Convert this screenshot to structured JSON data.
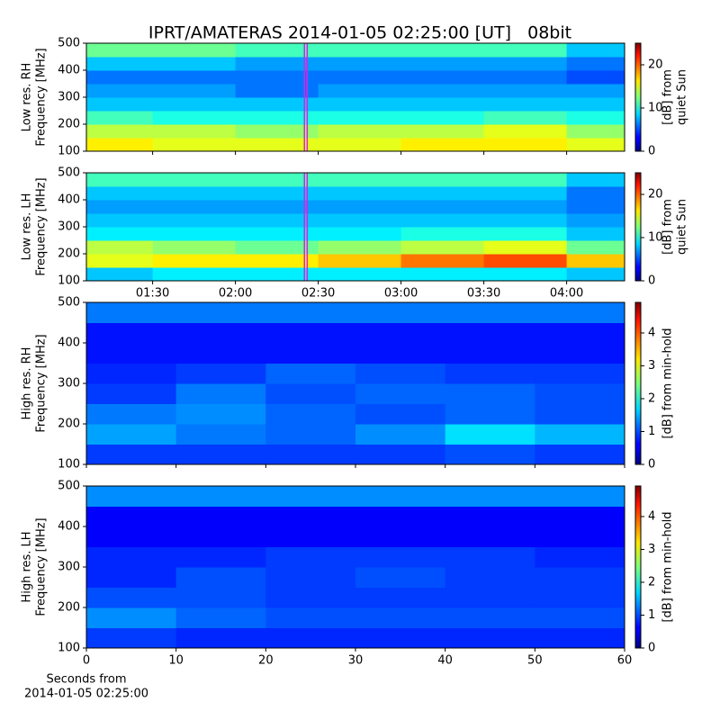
{
  "title": "IPRT/AMATERAS 2014-01-05 02:25:00 [UT]   08bit",
  "chart_data": [
    {
      "type": "heatmap",
      "colormap": "jet",
      "ylabel": [
        "Low res. RH",
        "Frequency [MHz]"
      ],
      "ylim": [
        100,
        500
      ],
      "yticks": [
        100,
        200,
        300,
        400,
        500
      ],
      "xlim": [
        66,
        261
      ],
      "x_bins": [
        66,
        90,
        120,
        150,
        180,
        210,
        240,
        261
      ],
      "y_bins": [
        100,
        150,
        200,
        250,
        300,
        350,
        400,
        450,
        500
      ],
      "z": [
        [
          16,
          15,
          15,
          15,
          16,
          16,
          15
        ],
        [
          14,
          14,
          13,
          14,
          14,
          15,
          13
        ],
        [
          11,
          10,
          10,
          10,
          10,
          11,
          10
        ],
        [
          8,
          8,
          8,
          8,
          8,
          8,
          8
        ],
        [
          7,
          7,
          6,
          7,
          7,
          7,
          7
        ],
        [
          6,
          6,
          6,
          6,
          6,
          6,
          5
        ],
        [
          8,
          8,
          7,
          7,
          7,
          7,
          6
        ],
        [
          12,
          12,
          11,
          11,
          11,
          11,
          8
        ]
      ],
      "highlight": [
        145,
        146
      ],
      "highlight_color": "#e020e0",
      "clim": [
        0,
        25
      ],
      "cticks": [
        0,
        10,
        20
      ],
      "clabel": [
        "[dB] from",
        "quiet Sun"
      ]
    },
    {
      "type": "heatmap",
      "colormap": "jet",
      "ylabel": [
        "Low res. LH",
        "Frequency [MHz]"
      ],
      "ylim": [
        100,
        500
      ],
      "yticks": [
        100,
        200,
        300,
        400,
        500
      ],
      "xlim": [
        66,
        261
      ],
      "xticks": [
        {
          "value": 90,
          "label": "01:30"
        },
        {
          "value": 120,
          "label": "02:00"
        },
        {
          "value": 150,
          "label": "02:30"
        },
        {
          "value": 180,
          "label": "03:00"
        },
        {
          "value": 210,
          "label": "03:30"
        },
        {
          "value": 240,
          "label": "04:00"
        }
      ],
      "x_bins": [
        66,
        90,
        120,
        150,
        180,
        210,
        240,
        261
      ],
      "y_bins": [
        100,
        150,
        200,
        250,
        300,
        350,
        400,
        450,
        500
      ],
      "z": [
        [
          8,
          9,
          9,
          9,
          9,
          9,
          8
        ],
        [
          15,
          16,
          16,
          17,
          19,
          20,
          17
        ],
        [
          14,
          13,
          12,
          13,
          14,
          15,
          12
        ],
        [
          9,
          9,
          9,
          9,
          10,
          10,
          8
        ],
        [
          8,
          8,
          8,
          8,
          8,
          8,
          7
        ],
        [
          7,
          7,
          7,
          7,
          7,
          7,
          6
        ],
        [
          8,
          8,
          8,
          8,
          8,
          8,
          6
        ],
        [
          11,
          11,
          11,
          11,
          11,
          11,
          8
        ]
      ],
      "highlight": [
        145,
        146
      ],
      "highlight_color": "#e020e0",
      "clim": [
        0,
        25
      ],
      "cticks": [
        0,
        10,
        20
      ],
      "clabel": [
        "[dB] from",
        "quiet Sun"
      ]
    },
    {
      "type": "heatmap",
      "colormap": "jet",
      "ylabel": [
        "High res. RH",
        "Frequency [MHz]"
      ],
      "ylim": [
        100,
        500
      ],
      "yticks": [
        100,
        200,
        300,
        400,
        500
      ],
      "xlim": [
        0,
        60
      ],
      "x_bins": [
        0,
        10,
        20,
        30,
        40,
        50,
        60
      ],
      "y_bins": [
        100,
        150,
        200,
        250,
        300,
        350,
        400,
        450,
        500
      ],
      "z": [
        [
          0.9,
          0.9,
          0.9,
          0.9,
          1.0,
          0.9
        ],
        [
          1.4,
          1.2,
          1.1,
          1.3,
          1.7,
          1.5
        ],
        [
          1.2,
          1.3,
          1.1,
          1.0,
          1.1,
          1.0
        ],
        [
          0.9,
          1.2,
          1.0,
          1.1,
          1.1,
          1.0
        ],
        [
          0.8,
          0.9,
          1.1,
          1.0,
          0.9,
          0.9
        ],
        [
          0.7,
          0.7,
          0.7,
          0.7,
          0.7,
          0.7
        ],
        [
          0.7,
          0.7,
          0.7,
          0.7,
          0.7,
          0.7
        ],
        [
          1.2,
          1.2,
          1.2,
          1.2,
          1.2,
          1.2
        ]
      ],
      "clim": [
        0,
        4.93
      ],
      "cticks": [
        0,
        1,
        2,
        3,
        4
      ],
      "clabel": [
        "[dB] from min-hold"
      ]
    },
    {
      "type": "heatmap",
      "colormap": "jet",
      "ylabel": [
        "High res. LH",
        "Frequency [MHz]"
      ],
      "ylim": [
        100,
        500
      ],
      "yticks": [
        100,
        200,
        300,
        400,
        500
      ],
      "xlim": [
        0,
        60
      ],
      "xticks": [
        0,
        10,
        20,
        30,
        40,
        50,
        60
      ],
      "xlabel": [
        "Seconds from",
        "2014-01-05 02:25:00"
      ],
      "x_bins": [
        0,
        10,
        20,
        30,
        40,
        50,
        60
      ],
      "y_bins": [
        100,
        150,
        200,
        250,
        300,
        350,
        400,
        450,
        500
      ],
      "z": [
        [
          0.9,
          0.8,
          0.8,
          0.8,
          0.8,
          0.8
        ],
        [
          1.3,
          1.1,
          1.0,
          1.0,
          1.0,
          1.0
        ],
        [
          1.0,
          1.0,
          0.9,
          0.9,
          0.9,
          0.9
        ],
        [
          0.8,
          1.0,
          0.9,
          1.0,
          0.9,
          0.9
        ],
        [
          0.8,
          0.8,
          0.9,
          0.9,
          0.9,
          0.8
        ],
        [
          0.6,
          0.6,
          0.6,
          0.6,
          0.6,
          0.6
        ],
        [
          0.6,
          0.6,
          0.6,
          0.6,
          0.6,
          0.6
        ],
        [
          1.3,
          1.3,
          1.3,
          1.3,
          1.3,
          1.3
        ]
      ],
      "clim": [
        0,
        4.93
      ],
      "cticks": [
        0,
        1,
        2,
        3,
        4
      ],
      "clabel": [
        "[dB] from min-hold"
      ]
    }
  ]
}
